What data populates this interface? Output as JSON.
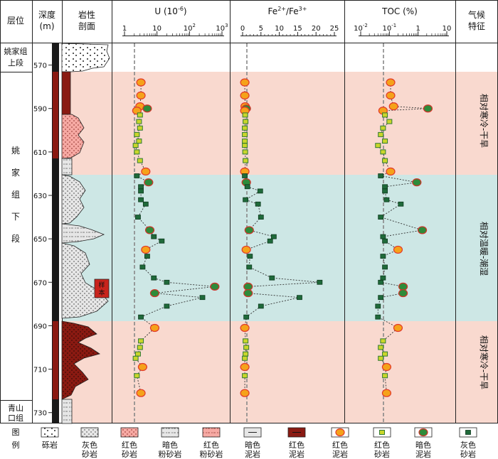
{
  "headers": {
    "layer": "层位",
    "depth": "深度",
    "depth_unit": "(m)",
    "lith_1": "岩性",
    "lith_2": "剖面",
    "u_label": "U (10",
    "u_sup": "-6",
    "u_close": ")",
    "fe_label_a": "Fe",
    "fe_sup_a": "2+",
    "fe_slash": "/Fe",
    "fe_sup_b": "3+",
    "toc_label": "TOC (%)",
    "climate_1": "气候",
    "climate_2": "特征"
  },
  "axes": {
    "u_ticks": [
      {
        "base": "1",
        "sup": ""
      },
      {
        "base": "10",
        "sup": ""
      },
      {
        "base": "10",
        "sup": "2"
      },
      {
        "base": "10",
        "sup": "3"
      }
    ],
    "fe_ticks": [
      "0",
      "5",
      "10",
      "15",
      "20",
      "25"
    ],
    "toc_ticks": [
      {
        "base": "10",
        "sup": "-2"
      },
      {
        "base": "10",
        "sup": "-1"
      },
      {
        "base": "1",
        "sup": ""
      },
      {
        "base": "10",
        "sup": ""
      }
    ]
  },
  "depth_ticks": [
    "570",
    "590",
    "610",
    "630",
    "650",
    "670",
    "690",
    "710",
    "730"
  ],
  "strata": [
    {
      "l1": "姚家组",
      "l2": "上段"
    },
    {
      "chars": [
        "姚",
        "家",
        "组",
        "下",
        "段"
      ]
    },
    {
      "l1": "青山",
      "l2": "口组"
    }
  ],
  "climate_zones": [
    {
      "label": "相对寒冷-干旱",
      "color": "#f9d9cf"
    },
    {
      "label": "相对温暖-潮湿",
      "color": "#cde7e5"
    },
    {
      "label": "相对寒冷-干旱",
      "color": "#f9d9cf"
    }
  ],
  "sample_label": {
    "l1": "样",
    "l2": "本"
  },
  "legend": {
    "title_1": "图",
    "title_2": "例",
    "items": [
      {
        "l1": "砾岩",
        "l2": ""
      },
      {
        "l1": "灰色",
        "l2": "砂岩"
      },
      {
        "l1": "红色",
        "l2": "砂岩"
      },
      {
        "l1": "暗色",
        "l2": "粉砂岩"
      },
      {
        "l1": "红色",
        "l2": "粉砂岩"
      },
      {
        "l1": "暗色",
        "l2": "泥岩"
      },
      {
        "l1": "红色",
        "l2": "泥岩"
      },
      {
        "l1": "红色",
        "l2": "泥岩"
      },
      {
        "l1": "红色",
        "l2": "砂岩"
      },
      {
        "l1": "暗色",
        "l2": "泥岩"
      },
      {
        "l1": "灰色",
        "l2": "砂岩"
      }
    ]
  },
  "colors": {
    "red_mudstone": "#f5a21a",
    "red_mudstone_edge": "#e23a2a",
    "red_sandstone": "#c9d62a",
    "red_sandstone_edge": "#2f7a34",
    "dark_mudstone": "#2e8b3a",
    "dark_mudstone_edge": "#d0342a",
    "gray_sandstone": "#1f6a3a",
    "red_rock": "#8a1a12"
  },
  "chart_data": {
    "type": "scatter",
    "depth_range": [
      560,
      735
    ],
    "samples": [
      {
        "d": 578,
        "u": 3.2,
        "fe": 0.6,
        "toc": 0.11,
        "t": "rm"
      },
      {
        "d": 584,
        "u": 3.2,
        "fe": 0.6,
        "toc": 0.11,
        "t": "rm"
      },
      {
        "d": 589,
        "u": 3.0,
        "fe": 0.7,
        "toc": 0.14,
        "t": "rm"
      },
      {
        "d": 590,
        "u": 5.0,
        "fe": 1.0,
        "toc": 2.2,
        "t": "dm"
      },
      {
        "d": 591,
        "u": 2.4,
        "fe": 0.6,
        "toc": 0.06,
        "t": "rm"
      },
      {
        "d": 593,
        "u": 3.0,
        "fe": 0.7,
        "toc": 0.07,
        "t": "rs"
      },
      {
        "d": 596,
        "u": 2.8,
        "fe": 0.8,
        "toc": 0.1,
        "t": "rs"
      },
      {
        "d": 599,
        "u": 3.0,
        "fe": 0.6,
        "toc": 0.06,
        "t": "rs"
      },
      {
        "d": 602,
        "u": 2.4,
        "fe": 0.6,
        "toc": 0.05,
        "t": "rs"
      },
      {
        "d": 605,
        "u": 2.8,
        "fe": 0.6,
        "toc": 0.07,
        "t": "rs"
      },
      {
        "d": 607,
        "u": 2.2,
        "fe": 0.6,
        "toc": 0.04,
        "t": "rs"
      },
      {
        "d": 610,
        "u": 2.4,
        "fe": 0.7,
        "toc": 0.06,
        "t": "rs"
      },
      {
        "d": 614,
        "u": 3.0,
        "fe": 0.8,
        "toc": 0.07,
        "t": "rs"
      },
      {
        "d": 619,
        "u": 4.5,
        "fe": 0.6,
        "toc": 0.11,
        "t": "rm"
      },
      {
        "d": 621,
        "u": 2.4,
        "fe": 0.6,
        "toc": 0.05,
        "t": "gs"
      },
      {
        "d": 624,
        "u": 5.5,
        "fe": 1.0,
        "toc": 0.9,
        "t": "dm"
      },
      {
        "d": 626,
        "u": 3.2,
        "fe": 1.3,
        "toc": 0.07,
        "t": "gs"
      },
      {
        "d": 628,
        "u": 3.2,
        "fe": 4.8,
        "toc": 0.07,
        "t": "gs"
      },
      {
        "d": 632,
        "u": 3.2,
        "fe": 0.8,
        "toc": 0.08,
        "t": "gs"
      },
      {
        "d": 634,
        "u": 4.5,
        "fe": 4.2,
        "toc": 0.25,
        "t": "gs"
      },
      {
        "d": 640,
        "u": 2.6,
        "fe": 5.0,
        "toc": 0.05,
        "t": "gs"
      },
      {
        "d": 646,
        "u": 6.0,
        "fe": 1.8,
        "toc": 1.4,
        "t": "dm"
      },
      {
        "d": 649,
        "u": 8.0,
        "fe": 8.5,
        "toc": 0.06,
        "t": "gs"
      },
      {
        "d": 651,
        "u": 14.0,
        "fe": 7.5,
        "toc": 0.07,
        "t": "gs"
      },
      {
        "d": 655,
        "u": 4.5,
        "fe": 1.0,
        "toc": 0.2,
        "t": "rm"
      },
      {
        "d": 658,
        "u": 5.0,
        "fe": 2.0,
        "toc": 0.06,
        "t": "gs"
      },
      {
        "d": 663,
        "u": 3.6,
        "fe": 1.8,
        "toc": 0.07,
        "t": "gs"
      },
      {
        "d": 668,
        "u": 8.0,
        "fe": 8.0,
        "toc": 0.06,
        "t": "gs"
      },
      {
        "d": 670,
        "u": 20.0,
        "fe": 21.0,
        "toc": 0.05,
        "t": "gs"
      },
      {
        "d": 672,
        "u": 600,
        "fe": 1.5,
        "toc": 0.3,
        "t": "dm"
      },
      {
        "d": 675,
        "u": 8.5,
        "fe": 1.5,
        "toc": 0.3,
        "t": "dm"
      },
      {
        "d": 677,
        "u": 250,
        "fe": 15.5,
        "toc": 0.05,
        "t": "gs"
      },
      {
        "d": 681,
        "u": 20.0,
        "fe": 5.0,
        "toc": 0.04,
        "t": "gs"
      },
      {
        "d": 686,
        "u": 3.2,
        "fe": 1.0,
        "toc": 0.04,
        "t": "gs"
      },
      {
        "d": 691,
        "u": 8.5,
        "fe": 0.6,
        "toc": 0.2,
        "t": "rm"
      },
      {
        "d": 697,
        "u": 3.2,
        "fe": 0.8,
        "toc": 0.06,
        "t": "rs"
      },
      {
        "d": 700,
        "u": 3.0,
        "fe": 1.0,
        "toc": 0.05,
        "t": "rs"
      },
      {
        "d": 703,
        "u": 2.6,
        "fe": 0.8,
        "toc": 0.07,
        "t": "rs"
      },
      {
        "d": 705,
        "u": 2.2,
        "fe": 0.6,
        "toc": 0.05,
        "t": "rs"
      },
      {
        "d": 709,
        "u": 3.6,
        "fe": 0.6,
        "toc": 0.08,
        "t": "rm"
      },
      {
        "d": 713,
        "u": 2.4,
        "fe": 0.6,
        "toc": 0.07,
        "t": "rs"
      },
      {
        "d": 721,
        "u": 3.2,
        "fe": 0.6,
        "toc": 0.08,
        "t": "rm"
      }
    ]
  }
}
